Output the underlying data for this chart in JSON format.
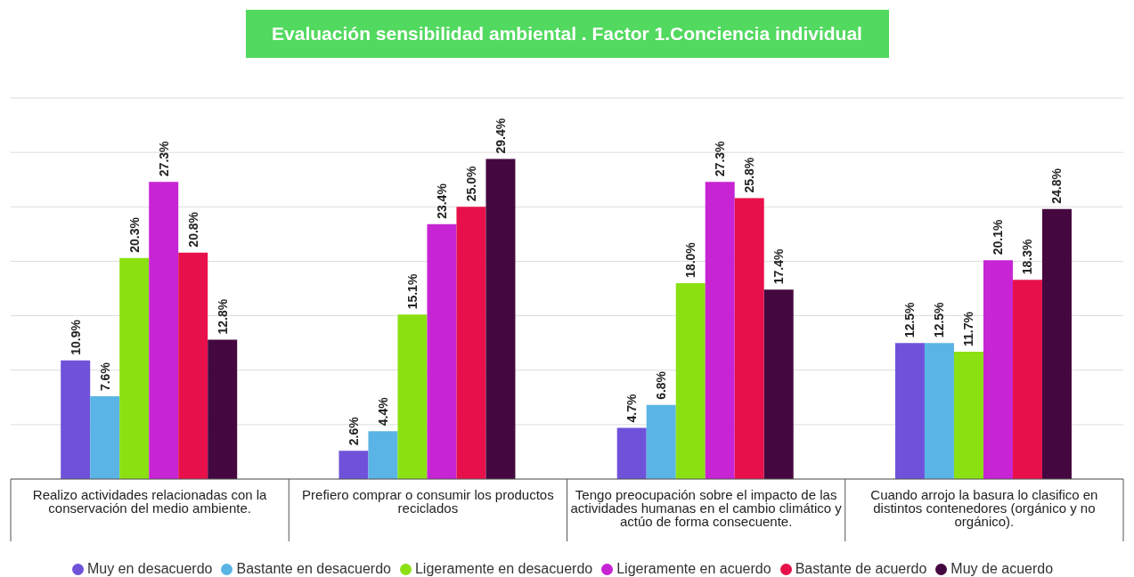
{
  "chart_data": {
    "type": "bar",
    "title": "Evaluación sensibilidad ambiental . Factor 1.Conciencia individual",
    "categories": [
      "Realizo actividades relacionadas con la conservación del medio ambiente.",
      "Prefiero comprar o consumir los productos reciclados",
      "Tengo preocupación sobre el impacto de las actividades humanas en el cambio climático y actúo de forma consecuente.",
      "Cuando arrojo la basura lo clasifico en distintos contenedores (orgánico y no orgánico)."
    ],
    "series": [
      {
        "name": "Muy en desacuerdo",
        "color": "#6f52d9",
        "values": [
          10.9,
          2.6,
          4.7,
          12.5
        ],
        "value_labels": [
          "10.9%",
          "2.6%",
          "4.7%",
          "12.5%"
        ]
      },
      {
        "name": "Bastante en desacuerdo",
        "color": "#5ab4e5",
        "values": [
          7.6,
          4.4,
          6.8,
          12.5
        ],
        "value_labels": [
          "7.6%",
          "4.4%",
          "6.8%",
          "12.5%"
        ]
      },
      {
        "name": "Ligeramente en desacuerdo",
        "color": "#8be012",
        "values": [
          20.3,
          15.1,
          18.0,
          11.7
        ],
        "value_labels": [
          "20.3%",
          "15.1%",
          "18.0%",
          "11.7%"
        ]
      },
      {
        "name": "Ligeramente en acuerdo",
        "color": "#c724d4",
        "values": [
          27.3,
          23.4,
          27.3,
          20.1
        ],
        "value_labels": [
          "27.3%",
          "23.4%",
          "27.3%",
          "20.1%"
        ]
      },
      {
        "name": "Bastante de acuerdo",
        "color": "#e8104a",
        "values": [
          20.8,
          25.0,
          25.8,
          18.3
        ],
        "value_labels": [
          "20.8%",
          "25.0%",
          "25.8%",
          "18.3%"
        ]
      },
      {
        "name": "Muy de acuerdo",
        "color": "#45073f",
        "values": [
          12.8,
          29.4,
          17.4,
          24.8
        ],
        "value_labels": [
          "12.8%",
          "29.4%",
          "17.4%",
          "24.8%"
        ]
      }
    ],
    "ylim": [
      0,
      35
    ],
    "tick_labels": "x",
    "grid": "y",
    "legend": "bottom"
  }
}
